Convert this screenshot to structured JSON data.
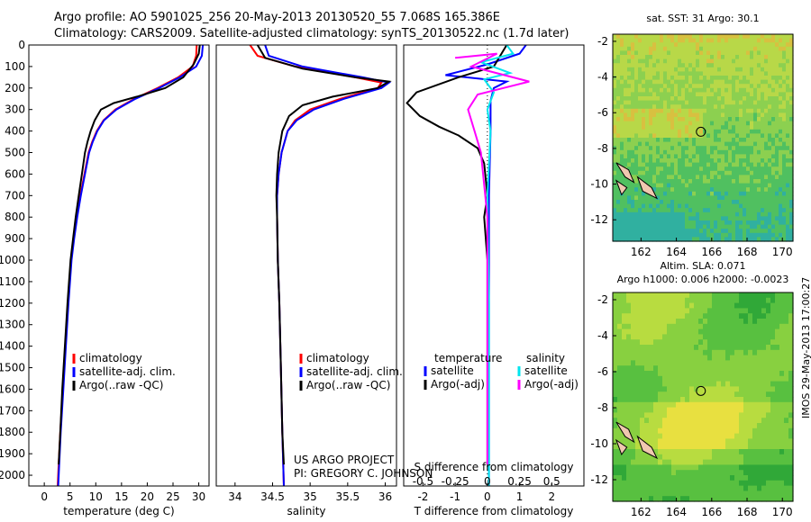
{
  "header": {
    "line1": "Argo profile: AO 5901025_256 20-May-2013 20130520_55 7.068S 165.386E",
    "line2": "Climatology: CARS2009. Satellite-adjusted climatology: synTS_20130522.nc (1.7d later)"
  },
  "colors": {
    "climatology": "#ff0000",
    "satellite": "#0000ff",
    "argo": "#000000",
    "salinity_satellite": "#00e5ee",
    "salinity_argo": "#ff00ff"
  },
  "chart_data": [
    {
      "type": "line",
      "id": "temperature-profile",
      "title": "",
      "xlabel": "temperature (deg C)",
      "ylabel": "",
      "xlim": [
        -3,
        32
      ],
      "ylim": [
        2050,
        0
      ],
      "x_ticks": [
        0,
        5,
        10,
        15,
        20,
        25,
        30
      ],
      "y_ticks": [
        0,
        100,
        200,
        300,
        400,
        500,
        600,
        700,
        800,
        900,
        1000,
        1100,
        1200,
        1300,
        1400,
        1500,
        1600,
        1700,
        1800,
        1900,
        2000
      ],
      "legend": [
        "climatology",
        "satellite-adj. clim.",
        "Argo(..raw -QC)"
      ],
      "legend_location": "lower-left",
      "series": [
        {
          "name": "climatology",
          "color": "#ff0000",
          "points": [
            [
              29.6,
              0
            ],
            [
              29.5,
              50
            ],
            [
              28.8,
              100
            ],
            [
              26.0,
              150
            ],
            [
              22.0,
              200
            ],
            [
              17.5,
              250
            ],
            [
              13.8,
              300
            ],
            [
              11.5,
              350
            ],
            [
              10.2,
              400
            ],
            [
              9.3,
              450
            ],
            [
              8.6,
              500
            ],
            [
              7.8,
              600
            ],
            [
              7.0,
              700
            ],
            [
              6.3,
              800
            ],
            [
              5.7,
              900
            ],
            [
              5.2,
              1000
            ],
            [
              4.6,
              1200
            ],
            [
              4.1,
              1400
            ],
            [
              3.6,
              1600
            ],
            [
              3.1,
              1800
            ],
            [
              2.8,
              1950
            ],
            [
              2.6,
              2050
            ]
          ]
        },
        {
          "name": "satellite-adj. clim.",
          "color": "#0000ff",
          "points": [
            [
              30.8,
              0
            ],
            [
              30.6,
              50
            ],
            [
              29.5,
              100
            ],
            [
              26.3,
              150
            ],
            [
              22.3,
              200
            ],
            [
              17.7,
              250
            ],
            [
              14.0,
              300
            ],
            [
              11.6,
              350
            ],
            [
              10.3,
              400
            ],
            [
              9.4,
              450
            ],
            [
              8.7,
              500
            ],
            [
              7.9,
              600
            ],
            [
              7.1,
              700
            ],
            [
              6.4,
              800
            ],
            [
              5.8,
              900
            ],
            [
              5.3,
              1000
            ],
            [
              4.7,
              1200
            ],
            [
              4.2,
              1400
            ],
            [
              3.7,
              1600
            ],
            [
              3.2,
              1800
            ],
            [
              2.9,
              1950
            ],
            [
              2.7,
              2050
            ]
          ]
        },
        {
          "name": "Argo(..raw -QC)",
          "color": "#000000",
          "points": [
            [
              30.2,
              0
            ],
            [
              30.0,
              40
            ],
            [
              29.0,
              90
            ],
            [
              27.0,
              150
            ],
            [
              23.5,
              200
            ],
            [
              18.0,
              240
            ],
            [
              13.5,
              270
            ],
            [
              11.0,
              300
            ],
            [
              9.8,
              350
            ],
            [
              9.0,
              400
            ],
            [
              8.4,
              450
            ],
            [
              7.9,
              500
            ],
            [
              7.3,
              600
            ],
            [
              6.7,
              700
            ],
            [
              6.1,
              800
            ],
            [
              5.6,
              900
            ],
            [
              5.1,
              1000
            ],
            [
              4.5,
              1200
            ],
            [
              4.0,
              1400
            ],
            [
              3.5,
              1600
            ],
            [
              3.1,
              1800
            ],
            [
              2.8,
              1950
            ]
          ]
        }
      ]
    },
    {
      "type": "line",
      "id": "salinity-profile",
      "title": "",
      "xlabel": "salinity",
      "ylabel": "",
      "xlim": [
        33.75,
        36.15
      ],
      "ylim": [
        2050,
        0
      ],
      "x_ticks": [
        34,
        34.5,
        35,
        35.5,
        36
      ],
      "legend": [
        "climatology",
        "satellite-adj. clim.",
        "Argo(..raw -QC)"
      ],
      "legend_location": "lower-right",
      "annotation_lines": [
        "US ARGO PROJECT",
        "PI: GREGORY C. JOHNSON"
      ],
      "series": [
        {
          "name": "climatology",
          "color": "#ff0000",
          "points": [
            [
              34.2,
              0
            ],
            [
              34.3,
              50
            ],
            [
              34.8,
              100
            ],
            [
              35.6,
              150
            ],
            [
              35.95,
              175
            ],
            [
              35.9,
              200
            ],
            [
              35.4,
              250
            ],
            [
              35.0,
              300
            ],
            [
              34.8,
              350
            ],
            [
              34.7,
              400
            ],
            [
              34.62,
              500
            ],
            [
              34.58,
              600
            ],
            [
              34.56,
              700
            ],
            [
              34.56,
              800
            ],
            [
              34.57,
              1000
            ],
            [
              34.59,
              1200
            ],
            [
              34.61,
              1500
            ],
            [
              34.63,
              1800
            ],
            [
              34.65,
              2050
            ]
          ]
        },
        {
          "name": "satellite-adj. clim.",
          "color": "#0000ff",
          "points": [
            [
              34.4,
              0
            ],
            [
              34.45,
              50
            ],
            [
              34.9,
              100
            ],
            [
              35.7,
              150
            ],
            [
              36.05,
              175
            ],
            [
              35.95,
              200
            ],
            [
              35.45,
              250
            ],
            [
              35.05,
              300
            ],
            [
              34.82,
              350
            ],
            [
              34.7,
              400
            ],
            [
              34.62,
              500
            ],
            [
              34.58,
              600
            ],
            [
              34.56,
              700
            ],
            [
              34.56,
              800
            ],
            [
              34.57,
              1000
            ],
            [
              34.59,
              1200
            ],
            [
              34.61,
              1500
            ],
            [
              34.63,
              1800
            ],
            [
              34.65,
              2050
            ]
          ]
        },
        {
          "name": "Argo(..raw -QC)",
          "color": "#000000",
          "points": [
            [
              34.3,
              0
            ],
            [
              34.4,
              60
            ],
            [
              34.9,
              110
            ],
            [
              35.6,
              150
            ],
            [
              36.05,
              170
            ],
            [
              35.9,
              200
            ],
            [
              35.3,
              240
            ],
            [
              34.9,
              280
            ],
            [
              34.72,
              330
            ],
            [
              34.63,
              400
            ],
            [
              34.58,
              500
            ],
            [
              34.56,
              600
            ],
            [
              34.55,
              700
            ],
            [
              34.56,
              800
            ],
            [
              34.57,
              1000
            ],
            [
              34.59,
              1200
            ],
            [
              34.61,
              1500
            ],
            [
              34.63,
              1800
            ],
            [
              34.65,
              1950
            ]
          ]
        }
      ]
    },
    {
      "type": "line",
      "id": "difference-profile",
      "title": "",
      "xlabel": "T difference from climatology",
      "xlabel_secondary": "S difference from climatology",
      "xlim": [
        -2.6,
        3.0
      ],
      "ylim": [
        2050,
        0
      ],
      "x_ticks": [
        -2,
        -1,
        0,
        1,
        2
      ],
      "x_ticks_secondary": [
        "-0.5",
        "-0.25",
        "0",
        "0.25",
        "0.5"
      ],
      "x_ticks_secondary_values": [
        -2,
        -1,
        0,
        1,
        2
      ],
      "legend_temperature_title": "temperature",
      "legend_salinity_title": "salinity",
      "legend": [
        "satellite",
        "Argo(-adj)",
        "satellite",
        "Argo(-adj)"
      ],
      "legend_location": "lower",
      "series": [
        {
          "name": "temperature satellite",
          "color": "#0000ff",
          "points": [
            [
              1.2,
              0
            ],
            [
              1.0,
              40
            ],
            [
              0.0,
              90
            ],
            [
              -1.3,
              140
            ],
            [
              0.6,
              170
            ],
            [
              0.2,
              200
            ],
            [
              0.1,
              260
            ],
            [
              0.1,
              400
            ],
            [
              0.05,
              700
            ],
            [
              0.05,
              1200
            ],
            [
              0.05,
              1800
            ],
            [
              0.05,
              2050
            ]
          ]
        },
        {
          "name": "temperature Argo(-adj)",
          "color": "#000000",
          "points": [
            [
              0.6,
              0
            ],
            [
              0.4,
              50
            ],
            [
              0.2,
              100
            ],
            [
              -0.9,
              150
            ],
            [
              -2.2,
              220
            ],
            [
              -2.5,
              270
            ],
            [
              -2.1,
              330
            ],
            [
              -1.5,
              380
            ],
            [
              -0.9,
              420
            ],
            [
              -0.3,
              480
            ],
            [
              -0.1,
              550
            ],
            [
              0.0,
              700
            ],
            [
              -0.1,
              800
            ],
            [
              0.0,
              1000
            ],
            [
              0.0,
              1500
            ],
            [
              0.0,
              1950
            ]
          ]
        },
        {
          "name": "salinity satellite",
          "color": "#00e5ee",
          "points": [
            [
              0.6,
              0
            ],
            [
              0.8,
              40
            ],
            [
              -0.2,
              80
            ],
            [
              0.7,
              130
            ],
            [
              -0.1,
              160
            ],
            [
              0.2,
              220
            ],
            [
              0.0,
              300
            ],
            [
              0.1,
              400
            ],
            [
              0.0,
              700
            ],
            [
              0.05,
              1200
            ],
            [
              0.05,
              1800
            ],
            [
              0.05,
              2050
            ]
          ]
        },
        {
          "name": "salinity Argo(-adj)",
          "color": "#ff00ff",
          "points": [
            [
              -1.0,
              60
            ],
            [
              0.3,
              40
            ],
            [
              -0.5,
              100
            ],
            [
              1.3,
              170
            ],
            [
              0.5,
              200
            ],
            [
              -0.3,
              230
            ],
            [
              -0.6,
              300
            ],
            [
              -0.4,
              400
            ],
            [
              -0.2,
              500
            ],
            [
              -0.1,
              650
            ],
            [
              0.0,
              800
            ],
            [
              0.0,
              1200
            ],
            [
              0.0,
              1800
            ],
            [
              0.0,
              1950
            ]
          ]
        }
      ]
    },
    {
      "type": "heatmap",
      "id": "sst-map",
      "title": "sat. SST: 31  Argo: 30.1",
      "xlim": [
        160.4,
        170.6
      ],
      "ylim": [
        -13.2,
        -1.6
      ],
      "x_ticks": [
        162,
        164,
        166,
        168,
        170
      ],
      "y_ticks": [
        -2,
        -4,
        -6,
        -8,
        -10,
        -12
      ],
      "float_position": [
        165.386,
        -7.068
      ]
    },
    {
      "type": "heatmap",
      "id": "sla-map",
      "title": "Altim. SLA: 0.071",
      "subtitle": "Argo h1000: 0.006 h2000: -0.0023",
      "xlim": [
        160.4,
        170.6
      ],
      "ylim": [
        -13.2,
        -1.6
      ],
      "x_ticks": [
        162,
        164,
        166,
        168,
        170
      ],
      "y_ticks": [
        -2,
        -4,
        -6,
        -8,
        -10,
        -12
      ],
      "float_position": [
        165.386,
        -7.068
      ]
    }
  ],
  "credit": "IMOS 29-May-2013 17:00:27"
}
